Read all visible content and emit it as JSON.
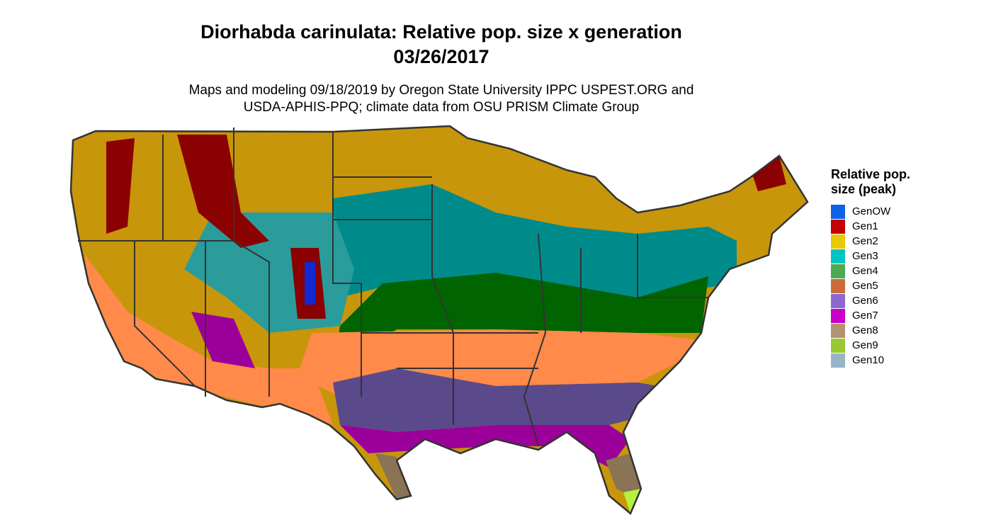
{
  "title": [
    "Diorhabda carinulata: Relative pop. size x generation",
    "03/26/2017"
  ],
  "subtitle": [
    "Maps and modeling 09/18/2019 by Oregon State University IPPC USPEST.ORG and",
    "USDA-APHIS-PPQ; climate data from OSU PRISM Climate Group"
  ],
  "legend": {
    "title": [
      "Relative pop.",
      "size (peak)"
    ],
    "items": [
      {
        "label": "GenOW",
        "color": "#0f62e6"
      },
      {
        "label": "Gen1",
        "color": "#c40000"
      },
      {
        "label": "Gen2",
        "color": "#e8c800"
      },
      {
        "label": "Gen3",
        "color": "#00c4c4"
      },
      {
        "label": "Gen4",
        "color": "#4caa50"
      },
      {
        "label": "Gen5",
        "color": "#cc6a3a"
      },
      {
        "label": "Gen6",
        "color": "#8a6ad0"
      },
      {
        "label": "Gen7",
        "color": "#c800c8"
      },
      {
        "label": "Gen8",
        "color": "#b09470"
      },
      {
        "label": "Gen9",
        "color": "#9ac832"
      },
      {
        "label": "Gen10",
        "color": "#96b6c8"
      }
    ]
  }
}
